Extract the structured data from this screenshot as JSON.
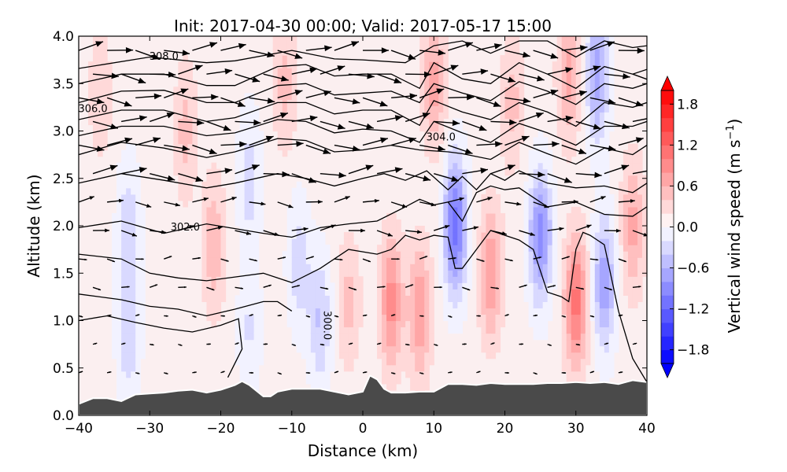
{
  "chart_data": {
    "type": "heatmap",
    "title": "Init: 2017-04-30 00:00; Valid: 2017-05-17 15:00",
    "xlabel": "Distance (km)",
    "ylabel": "Altitude (km)",
    "xlim": [
      -40,
      40
    ],
    "ylim": [
      0.0,
      4.0
    ],
    "xticks": [
      -40,
      -30,
      -20,
      -10,
      0,
      10,
      20,
      30,
      40
    ],
    "xtick_labels": [
      "−40",
      "−30",
      "−20",
      "−10",
      "0",
      "10",
      "20",
      "30",
      "40"
    ],
    "yticks": [
      0.0,
      0.5,
      1.0,
      1.5,
      2.0,
      2.5,
      3.0,
      3.5,
      4.0
    ],
    "ytick_labels": [
      "0.0",
      "0.5",
      "1.0",
      "1.5",
      "2.0",
      "2.5",
      "3.0",
      "3.5",
      "4.0"
    ],
    "grid": false,
    "colorbar": {
      "label": "Vertical wind speed (m s",
      "label_sup": "−1",
      "label_close": ")",
      "range": [
        -2.0,
        2.0
      ],
      "extend": "both",
      "levels": [
        -2.0,
        -1.8,
        -1.6,
        -1.4,
        -1.2,
        -1.0,
        -0.8,
        -0.6,
        -0.4,
        -0.2,
        0.0,
        0.2,
        0.4,
        0.6,
        0.8,
        1.0,
        1.2,
        1.4,
        1.6,
        1.8,
        2.0
      ],
      "ticks": [
        -1.8,
        -1.2,
        -0.6,
        0.0,
        0.6,
        1.2,
        1.8
      ],
      "tick_labels": [
        "−1.8",
        "−1.2",
        "−0.6",
        "0.0",
        "0.6",
        "1.2",
        "1.8"
      ],
      "cmap": "bwr",
      "placement": "right"
    },
    "vertical_wind_cells": [
      {
        "x": -37,
        "z": 3.4,
        "w": 0.3
      },
      {
        "x": -33,
        "z": 2.0,
        "w": -0.4
      },
      {
        "x": -33,
        "z": 0.8,
        "w": -0.4
      },
      {
        "x": -25,
        "z": 3.0,
        "w": 0.4
      },
      {
        "x": -21,
        "z": 1.8,
        "w": 0.5
      },
      {
        "x": -16,
        "z": 2.5,
        "w": -0.4
      },
      {
        "x": -16,
        "z": 0.9,
        "w": -0.3
      },
      {
        "x": -11,
        "z": 3.5,
        "w": 0.4
      },
      {
        "x": -9,
        "z": 1.6,
        "w": -0.4
      },
      {
        "x": -6,
        "z": 1.0,
        "w": -0.5
      },
      {
        "x": -2,
        "z": 1.2,
        "w": 0.4
      },
      {
        "x": 4,
        "z": 1.2,
        "w": 0.8
      },
      {
        "x": 8,
        "z": 1.1,
        "w": 0.7
      },
      {
        "x": 10,
        "z": 3.5,
        "w": 0.6
      },
      {
        "x": 13,
        "z": 2.0,
        "w": -1.2
      },
      {
        "x": 18,
        "z": 1.5,
        "w": 0.7
      },
      {
        "x": 21,
        "z": 3.3,
        "w": 0.4
      },
      {
        "x": 25,
        "z": 1.9,
        "w": -1.0
      },
      {
        "x": 30,
        "z": 1.2,
        "w": 1.0
      },
      {
        "x": 34,
        "z": 1.4,
        "w": -0.8
      },
      {
        "x": 38,
        "z": 2.0,
        "w": 0.6
      },
      {
        "x": 33,
        "z": 3.6,
        "w": -0.8
      },
      {
        "x": 29,
        "z": 3.6,
        "w": 0.6
      }
    ],
    "potential_temperature_contours": {
      "interval": 1.0,
      "labeled_levels": [
        {
          "value": "308.0",
          "x": -28,
          "z": 3.75
        },
        {
          "value": "306.0",
          "x": -38,
          "z": 3.2
        },
        {
          "value": "304.0",
          "x": 11,
          "z": 2.9
        },
        {
          "value": "302.0",
          "x": -25,
          "z": 1.95
        },
        {
          "value": "300.0",
          "x": -5.5,
          "z": 0.95
        }
      ],
      "lines": [
        {
          "level": 309,
          "x": [
            -40,
            -30,
            -22,
            -18,
            -10,
            -4,
            0,
            6,
            10,
            14,
            18,
            22,
            26,
            30,
            34,
            38,
            40
          ],
          "z": [
            3.66,
            3.78,
            3.72,
            3.74,
            3.85,
            3.76,
            3.75,
            3.72,
            3.9,
            3.95,
            3.82,
            3.95,
            3.95,
            3.78,
            3.95,
            3.88,
            3.9
          ]
        },
        {
          "level": 308,
          "x": [
            -40,
            -34,
            -28,
            -22,
            -18,
            -12,
            -8,
            -4,
            0,
            4,
            8,
            10,
            14,
            18,
            22,
            26,
            30,
            34,
            38,
            40
          ],
          "z": [
            3.5,
            3.6,
            3.6,
            3.48,
            3.48,
            3.68,
            3.7,
            3.58,
            3.6,
            3.6,
            3.45,
            3.72,
            3.55,
            3.5,
            3.72,
            3.6,
            3.45,
            3.68,
            3.6,
            3.65
          ]
        },
        {
          "level": 307,
          "x": [
            -40,
            -34,
            -28,
            -22,
            -18,
            -12,
            -8,
            -4,
            0,
            4,
            8,
            10,
            14,
            18,
            22,
            26,
            30,
            34,
            38,
            40
          ],
          "z": [
            3.3,
            3.42,
            3.43,
            3.3,
            3.3,
            3.48,
            3.5,
            3.38,
            3.4,
            3.42,
            3.3,
            3.5,
            3.4,
            3.32,
            3.52,
            3.42,
            3.28,
            3.5,
            3.45,
            3.5
          ]
        },
        {
          "level": 306,
          "x": [
            -40,
            -34,
            -28,
            -22,
            -18,
            -12,
            -8,
            -4,
            0,
            4,
            8,
            10,
            14,
            18,
            22,
            26,
            30,
            34,
            38,
            40
          ],
          "z": [
            3.12,
            3.22,
            3.22,
            3.1,
            3.14,
            3.3,
            3.3,
            3.18,
            3.22,
            3.22,
            3.06,
            3.32,
            3.2,
            3.12,
            3.3,
            3.2,
            3.05,
            3.3,
            3.25,
            3.3
          ]
        },
        {
          "level": 305,
          "x": [
            -40,
            -34,
            -28,
            -22,
            -18,
            -12,
            -8,
            -4,
            0,
            4,
            8,
            10,
            14,
            18,
            22,
            26,
            30,
            34,
            38,
            40
          ],
          "z": [
            2.95,
            3.05,
            3.05,
            2.95,
            2.98,
            3.12,
            3.1,
            2.98,
            3.02,
            3.0,
            2.88,
            3.1,
            2.98,
            2.88,
            3.08,
            2.98,
            2.85,
            3.05,
            3.05,
            3.1
          ]
        },
        {
          "level": 304,
          "x": [
            -40,
            -34,
            -28,
            -22,
            -18,
            -12,
            -8,
            -4,
            0,
            4,
            8,
            12,
            14,
            18,
            22,
            26,
            30,
            34,
            38,
            40
          ],
          "z": [
            2.75,
            2.88,
            2.82,
            2.72,
            2.78,
            2.92,
            2.9,
            2.78,
            2.8,
            2.85,
            2.8,
            2.78,
            2.76,
            2.7,
            2.88,
            2.76,
            2.65,
            2.82,
            2.75,
            2.85
          ]
        },
        {
          "level": 303,
          "x": [
            -40,
            -34,
            -28,
            -22,
            -18,
            -12,
            -8,
            -4,
            0,
            3,
            6,
            9,
            12,
            14,
            16,
            18,
            20,
            22,
            26,
            30,
            34,
            38,
            40
          ],
          "z": [
            2.45,
            2.55,
            2.48,
            2.4,
            2.45,
            2.55,
            2.5,
            2.42,
            2.5,
            2.55,
            2.48,
            2.58,
            2.38,
            2.52,
            2.38,
            2.55,
            2.48,
            2.58,
            2.45,
            2.4,
            2.42,
            2.35,
            2.45
          ]
        },
        {
          "level": 302,
          "x": [
            -40,
            -34,
            -28,
            -22,
            -18,
            -14,
            -10,
            -6,
            -2,
            2,
            6,
            8,
            10,
            12,
            14,
            16,
            18,
            20,
            22,
            24,
            26,
            30,
            34,
            38,
            40
          ],
          "z": [
            1.98,
            2.05,
            1.92,
            2.02,
            1.97,
            1.92,
            1.88,
            1.98,
            2.02,
            2.05,
            2.2,
            2.28,
            2.22,
            2.25,
            2.05,
            2.35,
            2.42,
            2.38,
            2.4,
            2.3,
            2.2,
            2.25,
            2.12,
            2.1,
            2.2
          ]
        },
        {
          "level": 301,
          "x": [
            -40,
            -34,
            -30,
            -26,
            -22,
            -18,
            -14,
            -10,
            -6,
            -2,
            2,
            4,
            6,
            8,
            10,
            12,
            13,
            14,
            16,
            18,
            20,
            22,
            24,
            26,
            28,
            29,
            30,
            31,
            32,
            34,
            36,
            38,
            40
          ],
          "z": [
            1.7,
            1.65,
            1.5,
            1.45,
            1.42,
            1.46,
            1.5,
            1.4,
            1.55,
            1.75,
            1.7,
            1.75,
            1.9,
            1.85,
            1.9,
            1.88,
            1.55,
            1.55,
            1.75,
            1.95,
            1.9,
            1.85,
            1.75,
            1.3,
            1.25,
            1.2,
            1.75,
            1.93,
            1.9,
            1.8,
            1.1,
            0.6,
            0.35
          ]
        },
        {
          "level": 300,
          "x": [
            -40,
            -34,
            -30,
            -26,
            -22,
            -18,
            -14,
            -12,
            -10
          ],
          "z": [
            1.28,
            1.22,
            1.15,
            1.12,
            1.05,
            1.12,
            1.2,
            1.2,
            1.1
          ]
        },
        {
          "level": 299.5,
          "x": [
            -40,
            -36,
            -32,
            -28,
            -24,
            -20,
            -17.5,
            -17,
            -19
          ],
          "z": [
            1.0,
            1.05,
            0.98,
            0.92,
            0.88,
            0.95,
            1.02,
            0.7,
            0.4
          ]
        }
      ]
    },
    "terrain_height_km": {
      "x": [
        -40,
        -38,
        -36,
        -34,
        -32,
        -30,
        -28,
        -26,
        -24,
        -22,
        -20,
        -18,
        -17,
        -16,
        -14,
        -13,
        -12,
        -10,
        -8,
        -6,
        -4,
        -2,
        0,
        1,
        2,
        3,
        4,
        6,
        8,
        10,
        12,
        14,
        16,
        18,
        20,
        22,
        24,
        26,
        28,
        30,
        32,
        34,
        36,
        37,
        38,
        40
      ],
      "z": [
        0.12,
        0.18,
        0.18,
        0.15,
        0.22,
        0.23,
        0.24,
        0.26,
        0.27,
        0.24,
        0.27,
        0.32,
        0.36,
        0.32,
        0.2,
        0.2,
        0.25,
        0.28,
        0.28,
        0.28,
        0.25,
        0.22,
        0.25,
        0.42,
        0.38,
        0.28,
        0.24,
        0.24,
        0.25,
        0.25,
        0.33,
        0.33,
        0.32,
        0.34,
        0.33,
        0.33,
        0.33,
        0.34,
        0.34,
        0.35,
        0.34,
        0.35,
        0.33,
        0.35,
        0.37,
        0.35
      ]
    },
    "wind_vectors": {
      "description": "Horizontal-vertical wind vectors (quiver), strong eastward aloft, weak near surface",
      "rows_z": [
        3.85,
        3.6,
        3.35,
        3.1,
        2.85,
        2.55,
        2.25,
        1.95,
        1.65,
        1.35,
        1.05,
        0.75,
        0.45
      ],
      "columns_x": [
        -40,
        -36,
        -32,
        -28,
        -24,
        -20,
        -16,
        -12,
        -8,
        -4,
        0,
        4,
        8,
        12,
        16,
        20,
        24,
        28,
        32,
        36,
        40
      ]
    }
  }
}
